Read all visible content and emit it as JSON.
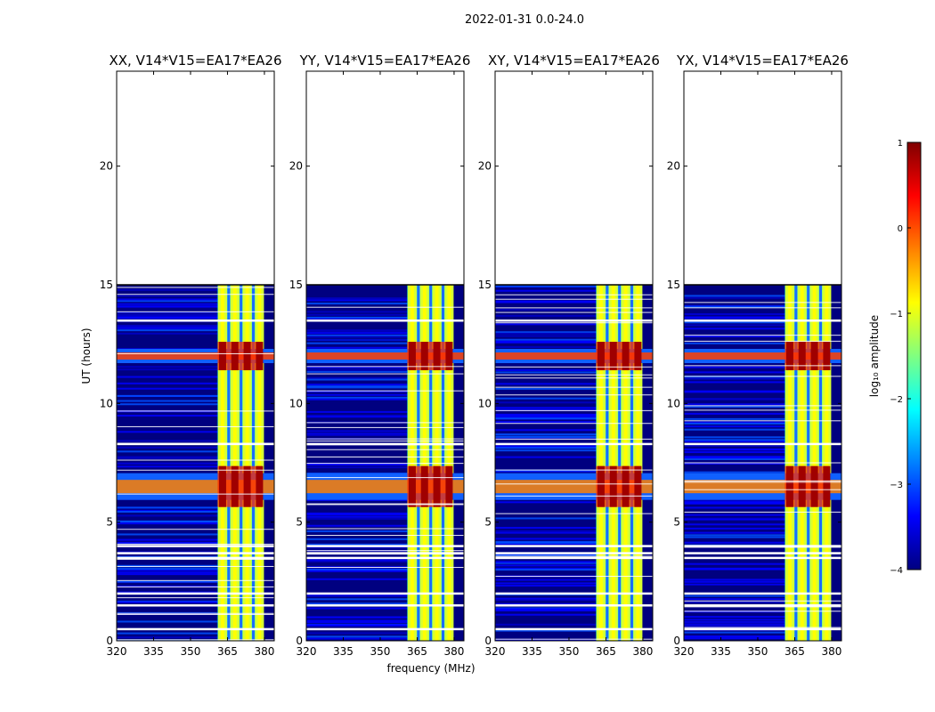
{
  "figure": {
    "suptitle": "2022-01-31 0.0-24.0"
  },
  "colors": {
    "background": "#000080",
    "rfi": "#ffffff",
    "axis": "#000000",
    "colormap": [
      "#000080",
      "#0000ff",
      "#0080ff",
      "#00ffff",
      "#80ff80",
      "#ffff00",
      "#ff8000",
      "#ff0000",
      "#800000"
    ]
  },
  "chart_data": {
    "type": "heatmap",
    "panels": [
      {
        "title": "XX, V14*V15=EA17*EA26",
        "flagged_times_hours": [
          0.5,
          1.5,
          2.0,
          3.5,
          3.7,
          4.0,
          8.3,
          13.5
        ]
      },
      {
        "title": "YY, V14*V15=EA17*EA26",
        "flagged_times_hours": [
          0.5,
          1.5,
          2.0,
          3.5,
          3.7,
          4.0,
          8.3,
          13.5
        ]
      },
      {
        "title": "XY, V14*V15=EA17*EA26",
        "flagged_times_hours": [
          0.5,
          1.5,
          2.0,
          3.5,
          3.7,
          4.0,
          8.3,
          13.5
        ]
      },
      {
        "title": "YX, V14*V15=EA17*EA26",
        "flagged_times_hours": [
          0.5,
          1.5,
          2.0,
          3.5,
          3.7,
          4.0,
          8.3,
          13.5
        ]
      }
    ],
    "xlabel": "frequency (MHz)",
    "ylabel": "UT (hours)",
    "xlim": [
      320,
      384
    ],
    "ylim": [
      0,
      24
    ],
    "xticks": [
      320,
      335,
      350,
      365,
      380
    ],
    "yticks": [
      0,
      5,
      10,
      15,
      20
    ],
    "data_extent_hours": [
      0,
      15
    ],
    "signal_band_mhz": [
      361,
      379
    ],
    "signal_channels_mhz": [
      363,
      368,
      373,
      378
    ],
    "rfi_times_hours": [
      6.5,
      12.0
    ],
    "colorbar": {
      "label": "log₁₀ amplitude",
      "range": [
        -4,
        1
      ],
      "ticks": [
        1,
        0,
        -1,
        -2,
        -3,
        -4
      ],
      "tick_labels": [
        "1",
        "0",
        "−1",
        "−2",
        "−3",
        "−4"
      ]
    }
  }
}
